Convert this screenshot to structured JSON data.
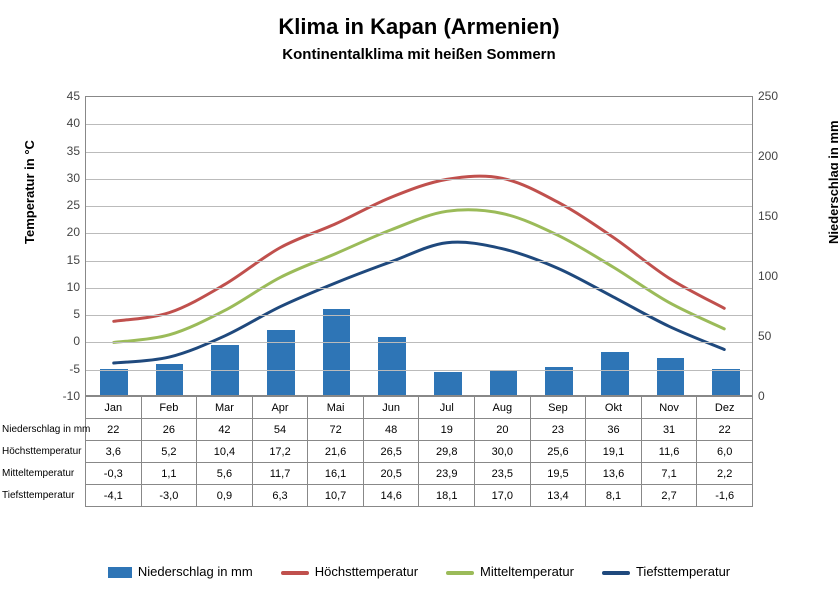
{
  "title": "Klima in Kapan (Armenien)",
  "subtitle": "Kontinentalklima mit heißen Sommern",
  "axisLeft": {
    "label": "Temperatur in °C",
    "min": -10,
    "max": 45,
    "step": 5
  },
  "axisRight": {
    "label": "Niederschlag in mm",
    "min": 0,
    "max": 250,
    "step": 50
  },
  "months": [
    "Jan",
    "Feb",
    "Mar",
    "Apr",
    "Mai",
    "Jun",
    "Jul",
    "Aug",
    "Sep",
    "Okt",
    "Nov",
    "Dez"
  ],
  "colors": {
    "bar": "#2e75b6",
    "high": "#c0504d",
    "mean": "#9bbb59",
    "low": "#1f497d",
    "grid": "#bbbbbb",
    "border": "#888888",
    "background": "#ffffff"
  },
  "series": {
    "precip": {
      "label": "Niederschlag in mm",
      "values": [
        22,
        26,
        42,
        54,
        72,
        48,
        19,
        20,
        23,
        36,
        31,
        22
      ],
      "axis": "right",
      "type": "bar",
      "color": "#2e75b6",
      "barWidthFrac": 0.5
    },
    "high": {
      "label": "Höchsttemperatur",
      "values": [
        3.6,
        5.2,
        10.4,
        17.2,
        21.6,
        26.5,
        29.8,
        30.0,
        25.6,
        19.1,
        11.6,
        6.0
      ],
      "axis": "left",
      "type": "line",
      "color": "#c0504d",
      "lineWidth": 3
    },
    "mean": {
      "label": "Mitteltemperatur",
      "values": [
        -0.3,
        1.1,
        5.6,
        11.7,
        16.1,
        20.5,
        23.9,
        23.5,
        19.5,
        13.6,
        7.1,
        2.2
      ],
      "axis": "left",
      "type": "line",
      "color": "#9bbb59",
      "lineWidth": 3
    },
    "low": {
      "label": "Tiefsttemperatur",
      "values": [
        -4.1,
        -3.0,
        0.9,
        6.3,
        10.7,
        14.6,
        18.1,
        17.0,
        13.4,
        8.1,
        2.7,
        -1.6
      ],
      "axis": "left",
      "type": "line",
      "color": "#1f497d",
      "lineWidth": 3
    }
  },
  "tableRowOrder": [
    "precip",
    "high",
    "mean",
    "low"
  ],
  "legendOrder": [
    "precip",
    "high",
    "mean",
    "low"
  ],
  "fonts": {
    "title": 22,
    "subtitle": 15,
    "axis": 12,
    "table": 11,
    "legend": 13
  }
}
